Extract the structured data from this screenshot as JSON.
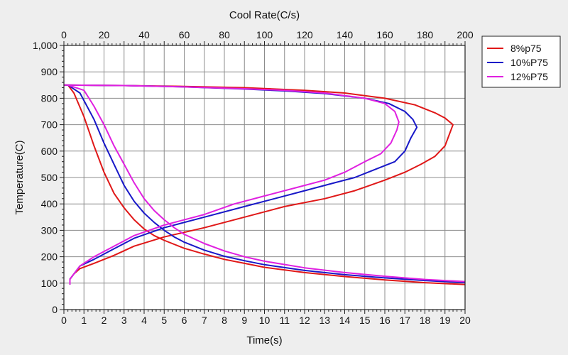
{
  "chart_data": {
    "type": "line",
    "title": "",
    "xlabel": "Time(s)",
    "x2label": "Cool Rate(C/s)",
    "ylabel": "Temperature(C)",
    "xlim": [
      0,
      20
    ],
    "x2lim": [
      0,
      200
    ],
    "ylim": [
      0,
      1000
    ],
    "x_ticks": [
      0,
      1,
      2,
      3,
      4,
      5,
      6,
      7,
      8,
      9,
      10,
      11,
      12,
      13,
      14,
      15,
      16,
      17,
      18,
      19,
      20
    ],
    "x2_ticks": [
      0,
      20,
      40,
      60,
      80,
      100,
      120,
      140,
      160,
      180,
      200
    ],
    "y_ticks": [
      0,
      100,
      200,
      300,
      400,
      500,
      600,
      700,
      800,
      900,
      1000
    ],
    "y_tick_labels": [
      "0",
      "100",
      "200",
      "300",
      "400",
      "500",
      "600",
      "700",
      "800",
      "900",
      "1,000"
    ],
    "grid": true,
    "legend_position": "right-top",
    "series": [
      {
        "name": "8%p75",
        "color": "#e01818",
        "cooling_curve": {
          "axis": "Time(s)",
          "points": [
            [
              0.2,
              850
            ],
            [
              0.5,
              820
            ],
            [
              1.0,
              730
            ],
            [
              1.5,
              620
            ],
            [
              2.0,
              520
            ],
            [
              2.5,
              440
            ],
            [
              3.0,
              385
            ],
            [
              3.5,
              340
            ],
            [
              4.0,
              305
            ],
            [
              4.5,
              280
            ],
            [
              5.0,
              262
            ],
            [
              6.0,
              232
            ],
            [
              7.0,
              210
            ],
            [
              8.0,
              190
            ],
            [
              9.0,
              175
            ],
            [
              10.0,
              160
            ],
            [
              12.0,
              140
            ],
            [
              14.0,
              125
            ],
            [
              16.0,
              112
            ],
            [
              18.0,
              102
            ],
            [
              20.0,
              95
            ]
          ]
        },
        "rate_curve": {
          "axis": "Cool Rate(C/s)",
          "points": [
            [
              0,
              850
            ],
            [
              30,
              848
            ],
            [
              60,
              845
            ],
            [
              90,
              840
            ],
            [
              120,
              830
            ],
            [
              140,
              820
            ],
            [
              160,
              800
            ],
            [
              175,
              775
            ],
            [
              185,
              745
            ],
            [
              190,
              725
            ],
            [
              194,
              700
            ],
            [
              192,
              660
            ],
            [
              190,
              620
            ],
            [
              185,
              580
            ],
            [
              178,
              550
            ],
            [
              170,
              520
            ],
            [
              160,
              490
            ],
            [
              145,
              450
            ],
            [
              130,
              420
            ],
            [
              110,
              390
            ],
            [
              90,
              350
            ],
            [
              70,
              310
            ],
            [
              50,
              275
            ],
            [
              35,
              240
            ],
            [
              25,
              205
            ],
            [
              15,
              175
            ],
            [
              8,
              155
            ],
            [
              5,
              135
            ],
            [
              3,
              115
            ],
            [
              3,
              95
            ]
          ]
        }
      },
      {
        "name": "10%P75",
        "color": "#1818c8",
        "cooling_curve": {
          "axis": "Time(s)",
          "points": [
            [
              0.2,
              850
            ],
            [
              0.8,
              820
            ],
            [
              1.5,
              720
            ],
            [
              2.0,
              630
            ],
            [
              2.5,
              550
            ],
            [
              3.0,
              470
            ],
            [
              3.5,
              410
            ],
            [
              4.0,
              365
            ],
            [
              4.5,
              330
            ],
            [
              5.0,
              300
            ],
            [
              5.5,
              275
            ],
            [
              6.0,
              255
            ],
            [
              7.0,
              225
            ],
            [
              8.0,
              202
            ],
            [
              9.0,
              185
            ],
            [
              10.0,
              170
            ],
            [
              12.0,
              148
            ],
            [
              14.0,
              132
            ],
            [
              16.0,
              120
            ],
            [
              18.0,
              110
            ],
            [
              20.0,
              102
            ]
          ]
        },
        "rate_curve": {
          "axis": "Cool Rate(C/s)",
          "points": [
            [
              0,
              850
            ],
            [
              30,
              848
            ],
            [
              60,
              843
            ],
            [
              90,
              835
            ],
            [
              110,
              828
            ],
            [
              130,
              818
            ],
            [
              150,
              800
            ],
            [
              162,
              780
            ],
            [
              170,
              750
            ],
            [
              174,
              720
            ],
            [
              176,
              690
            ],
            [
              173,
              650
            ],
            [
              170,
              600
            ],
            [
              165,
              560
            ],
            [
              155,
              530
            ],
            [
              145,
              500
            ],
            [
              135,
              480
            ],
            [
              120,
              450
            ],
            [
              105,
              420
            ],
            [
              90,
              390
            ],
            [
              70,
              350
            ],
            [
              50,
              310
            ],
            [
              35,
              270
            ],
            [
              25,
              230
            ],
            [
              15,
              190
            ],
            [
              8,
              165
            ],
            [
              5,
              135
            ],
            [
              3,
              115
            ],
            [
              3,
              95
            ]
          ]
        },
        "note": ""
      },
      {
        "name": "12%P75",
        "color": "#e020e0",
        "cooling_curve": {
          "axis": "Time(s)",
          "points": [
            [
              0.2,
              850
            ],
            [
              1.0,
              830
            ],
            [
              1.5,
              770
            ],
            [
              2.0,
              700
            ],
            [
              2.5,
              620
            ],
            [
              3.0,
              550
            ],
            [
              3.5,
              480
            ],
            [
              4.0,
              420
            ],
            [
              4.5,
              375
            ],
            [
              5.0,
              340
            ],
            [
              5.5,
              310
            ],
            [
              6.0,
              285
            ],
            [
              7.0,
              250
            ],
            [
              8.0,
              222
            ],
            [
              9.0,
              200
            ],
            [
              10.0,
              183
            ],
            [
              12.0,
              158
            ],
            [
              14.0,
              140
            ],
            [
              16.0,
              126
            ],
            [
              18.0,
              114
            ],
            [
              20.0,
              106
            ]
          ]
        },
        "rate_curve": {
          "axis": "Cool Rate(C/s)",
          "points": [
            [
              0,
              850
            ],
            [
              30,
              848
            ],
            [
              60,
              843
            ],
            [
              90,
              836
            ],
            [
              110,
              830
            ],
            [
              130,
              820
            ],
            [
              150,
              800
            ],
            [
              160,
              780
            ],
            [
              165,
              750
            ],
            [
              167,
              710
            ],
            [
              166,
              680
            ],
            [
              163,
              630
            ],
            [
              158,
              590
            ],
            [
              150,
              560
            ],
            [
              140,
              520
            ],
            [
              130,
              490
            ],
            [
              115,
              460
            ],
            [
              100,
              430
            ],
            [
              85,
              400
            ],
            [
              70,
              360
            ],
            [
              50,
              320
            ],
            [
              35,
              280
            ],
            [
              25,
              240
            ],
            [
              15,
              200
            ],
            [
              8,
              165
            ],
            [
              5,
              135
            ],
            [
              3,
              115
            ],
            [
              3,
              95
            ]
          ]
        }
      }
    ]
  }
}
